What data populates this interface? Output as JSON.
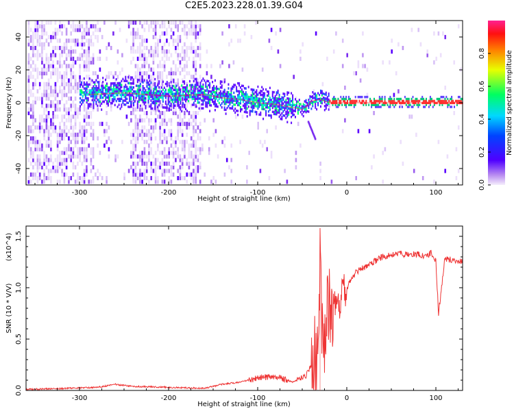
{
  "figure_title": "C2E5.2023.228.01.39.G04",
  "chart_data": [
    {
      "type": "heatmap",
      "title": "C2E5.2023.228.01.39.G04",
      "xlabel": "Height of straight line (km)",
      "ylabel": "Frequency (Hz)",
      "xlim": [
        -360,
        130
      ],
      "ylim": [
        -50,
        50
      ],
      "xticks": [
        -300,
        -200,
        -100,
        0,
        100
      ],
      "yticks": [
        -40,
        -20,
        0,
        20,
        40
      ],
      "colorbar": {
        "label": "Normalized spectral amplitude",
        "range": [
          0.0,
          1.0
        ],
        "ticks": [
          0.0,
          0.2,
          0.4,
          0.6,
          0.8
        ],
        "colormap": "rainbow",
        "tick_labels": [
          "0.0",
          "0.2",
          "0.4",
          "0.6",
          "0.8"
        ]
      },
      "signal_trace": {
        "description": "dominant frequency line",
        "height_km": [
          -290,
          -250,
          -200,
          -160,
          -140,
          -120,
          -100,
          -80,
          -60,
          -50,
          -45,
          -40,
          -30,
          -20,
          0,
          50,
          100,
          130
        ],
        "frequency_hz": [
          5,
          6,
          4,
          5,
          3,
          2,
          0,
          -1,
          -3,
          -4,
          -2,
          1,
          2,
          0,
          0,
          0,
          0,
          0
        ]
      }
    },
    {
      "type": "line",
      "xlabel": "Height of straight line (km)",
      "ylabel": "SNR (10 * V/V)",
      "y_multiplier": "(x10^4)",
      "xlim": [
        -360,
        130
      ],
      "ylim": [
        0,
        1.6
      ],
      "xticks": [
        -300,
        -200,
        -100,
        0,
        100
      ],
      "yticks": [
        0.0,
        0.5,
        1.0,
        1.5
      ],
      "ytick_labels": [
        "0.0",
        "0.5",
        "1.0",
        "1.5"
      ],
      "series": [
        {
          "name": "SNR",
          "color": "#ee3333",
          "x": [
            -360,
            -320,
            -280,
            -260,
            -240,
            -200,
            -160,
            -140,
            -120,
            -100,
            -80,
            -60,
            -45,
            -40,
            -35,
            -32,
            -30,
            -27,
            -25,
            -20,
            -15,
            -10,
            -5,
            0,
            10,
            20,
            30,
            40,
            50,
            60,
            70,
            80,
            90,
            95,
            100,
            103,
            110,
            120,
            130
          ],
          "y": [
            0.01,
            0.02,
            0.03,
            0.06,
            0.04,
            0.03,
            0.02,
            0.06,
            0.08,
            0.12,
            0.14,
            0.08,
            0.15,
            0.25,
            0.35,
            0.3,
            1.5,
            0.4,
            0.6,
            0.9,
            0.85,
            0.8,
            0.95,
            1.0,
            1.15,
            1.2,
            1.25,
            1.3,
            1.32,
            1.33,
            1.32,
            1.33,
            1.3,
            1.35,
            1.25,
            0.75,
            1.28,
            1.27,
            1.25
          ]
        }
      ]
    }
  ]
}
